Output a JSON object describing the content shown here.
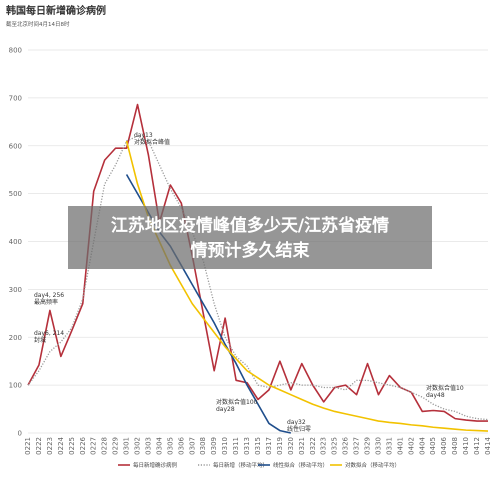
{
  "chart_data": {
    "type": "line",
    "title": "韩国每日新增确诊病例",
    "subtitle": "截至北京时间4月14日8时",
    "categories": [
      "0221",
      "0222",
      "0223",
      "0224",
      "0225",
      "0226",
      "0227",
      "0228",
      "0229",
      "0301",
      "0302",
      "0303",
      "0304",
      "0305",
      "0306",
      "0307",
      "0308",
      "0309",
      "0310",
      "0311",
      "0313",
      "0315",
      "0317",
      "0319",
      "0320",
      "0321",
      "0322",
      "0323",
      "0325",
      "0326",
      "0327",
      "0329",
      "0330",
      "0331",
      "0401",
      "0402",
      "0404",
      "0405",
      "0406",
      "0408",
      "0410",
      "0412",
      "0414"
    ],
    "series": [
      {
        "name": "每日新增确诊病例",
        "color": "#b5303b",
        "style": "solid",
        "values": [
          100,
          142,
          256,
          160,
          214,
          270,
          505,
          570,
          595,
          595,
          686,
          580,
          440,
          518,
          480,
          370,
          250,
          130,
          240,
          110,
          105,
          70,
          90,
          150,
          90,
          145,
          100,
          65,
          95,
          100,
          80,
          145,
          80,
          120,
          95,
          85,
          45,
          47,
          45,
          30,
          27,
          25,
          25
        ]
      },
      {
        "name": "每日新增（移动平均）",
        "color": "#999999",
        "style": "dotted",
        "values": [
          100,
          130,
          170,
          190,
          220,
          280,
          400,
          520,
          560,
          610,
          620,
          610,
          560,
          510,
          470,
          420,
          360,
          270,
          200,
          160,
          140,
          100,
          95,
          100,
          105,
          100,
          100,
          95,
          95,
          90,
          110,
          110,
          105,
          100,
          95,
          85,
          75,
          60,
          50,
          45,
          35,
          30,
          28
        ]
      },
      {
        "name": "线性拟合（移动平均）",
        "color": "#1f4e8c",
        "style": "solid",
        "values": [
          null,
          null,
          null,
          null,
          null,
          null,
          null,
          null,
          null,
          540,
          500,
          460,
          420,
          390,
          350,
          310,
          270,
          230,
          185,
          145,
          100,
          60,
          20,
          5,
          0,
          null,
          null,
          null,
          null,
          null,
          null,
          null,
          null,
          null,
          null,
          null,
          null,
          null,
          null,
          null,
          null,
          null,
          null
        ]
      },
      {
        "name": "对数拟合（移动平均）",
        "color": "#f2c200",
        "style": "solid",
        "values": [
          null,
          null,
          null,
          null,
          null,
          null,
          null,
          null,
          null,
          610,
          520,
          450,
          400,
          350,
          310,
          270,
          240,
          210,
          180,
          155,
          130,
          115,
          100,
          90,
          80,
          70,
          60,
          52,
          45,
          40,
          35,
          30,
          25,
          22,
          20,
          17,
          15,
          12,
          10,
          8,
          6,
          5,
          4
        ]
      }
    ],
    "ylim": [
      0,
      800
    ],
    "yticks": [
      0,
      100,
      200,
      300,
      400,
      500,
      600,
      700,
      800
    ],
    "grid": true,
    "annotations": [
      {
        "lines": [
          "day4, 256",
          "最高频率"
        ],
        "color": "#b5303b"
      },
      {
        "lines": [
          "day6, 214",
          "封城"
        ],
        "color": "#b5303b"
      },
      {
        "lines": [
          "day13",
          "对数拟合峰值"
        ],
        "color": "#333333"
      },
      {
        "lines": [
          "对数拟合值100",
          "day28"
        ],
        "color": "#333333"
      },
      {
        "lines": [
          "day32",
          "线性归零"
        ],
        "color": "#1f4e8c"
      },
      {
        "lines": [
          "对数拟合值10",
          "day48"
        ],
        "color": "#333333"
      }
    ]
  },
  "overlay": {
    "lines": [
      "江苏地区疫情峰值多少天/江苏省疫情",
      "情预计多久结束"
    ]
  }
}
